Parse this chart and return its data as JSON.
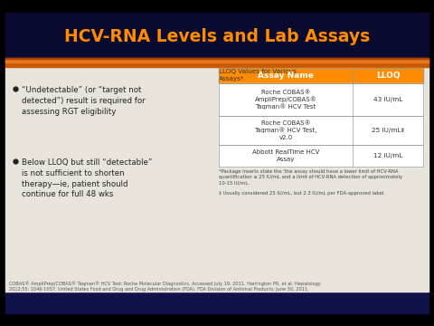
{
  "title": "HCV-RNA Levels and Lab Assays",
  "title_color": "#FF8C00",
  "bg_top_color": "#0d0d3b",
  "bg_content_color": "#1a1a6e",
  "slide_bg": "#000000",
  "content_bg": "#e8e4dc",
  "orange_bar_color": "#c85a00",
  "orange_bar_light": "#e87820",
  "bullet_color": "#222222",
  "bullet_points": [
    "“Undetectable” (or “target not\ndetected”) result is required for\nassessing RGT eligibility",
    "Below LLOQ but still “detectable”\nis not sufficient to shorten\ntherapy—ie, patient should\ncontinue for full 48 wks"
  ],
  "table_title": "LLOQ Values for Various\nAssays*",
  "table_header": [
    "Assay Name",
    "LLOQ"
  ],
  "table_header_bg": "#FF8C00",
  "table_header_color": "#ffffff",
  "table_rows": [
    [
      "Roche COBAS®\nAmpliPrep/COBAS®\nTaqman® HCV Test",
      "43 IU/mL"
    ],
    [
      "Roche COBAS®\nTaqman® HCV Test,\nv2.0",
      "25 IU/mL‡"
    ],
    [
      "Abbott RealTime HCV\nAssay",
      "12 IU/mL"
    ]
  ],
  "table_line_color": "#aaaaaa",
  "footnote1": "*Package inserts state the 'the assay should have a lower limit of HCV-RNA\nquantification ≤ 25 IU/mL and a limit of HCV-RNA detection of approximately\n10-15 IU/mL.",
  "footnote2": "‡ Usually considered 25 IU/mL, but 2.3 IU/mL per FDA-approved label.",
  "reference": "COBAS® AmpliPrep/COBAS® Taqman® HCV Test: Roche Molecular Diagnostics. Accessed July 19, 2011. Harrington PR, et al. Hepatology\n2012;55: 1046-1057. United States Food and Drug and Drug Administration (FDA). FDA Division of Antiviral Products; June 30, 2011."
}
